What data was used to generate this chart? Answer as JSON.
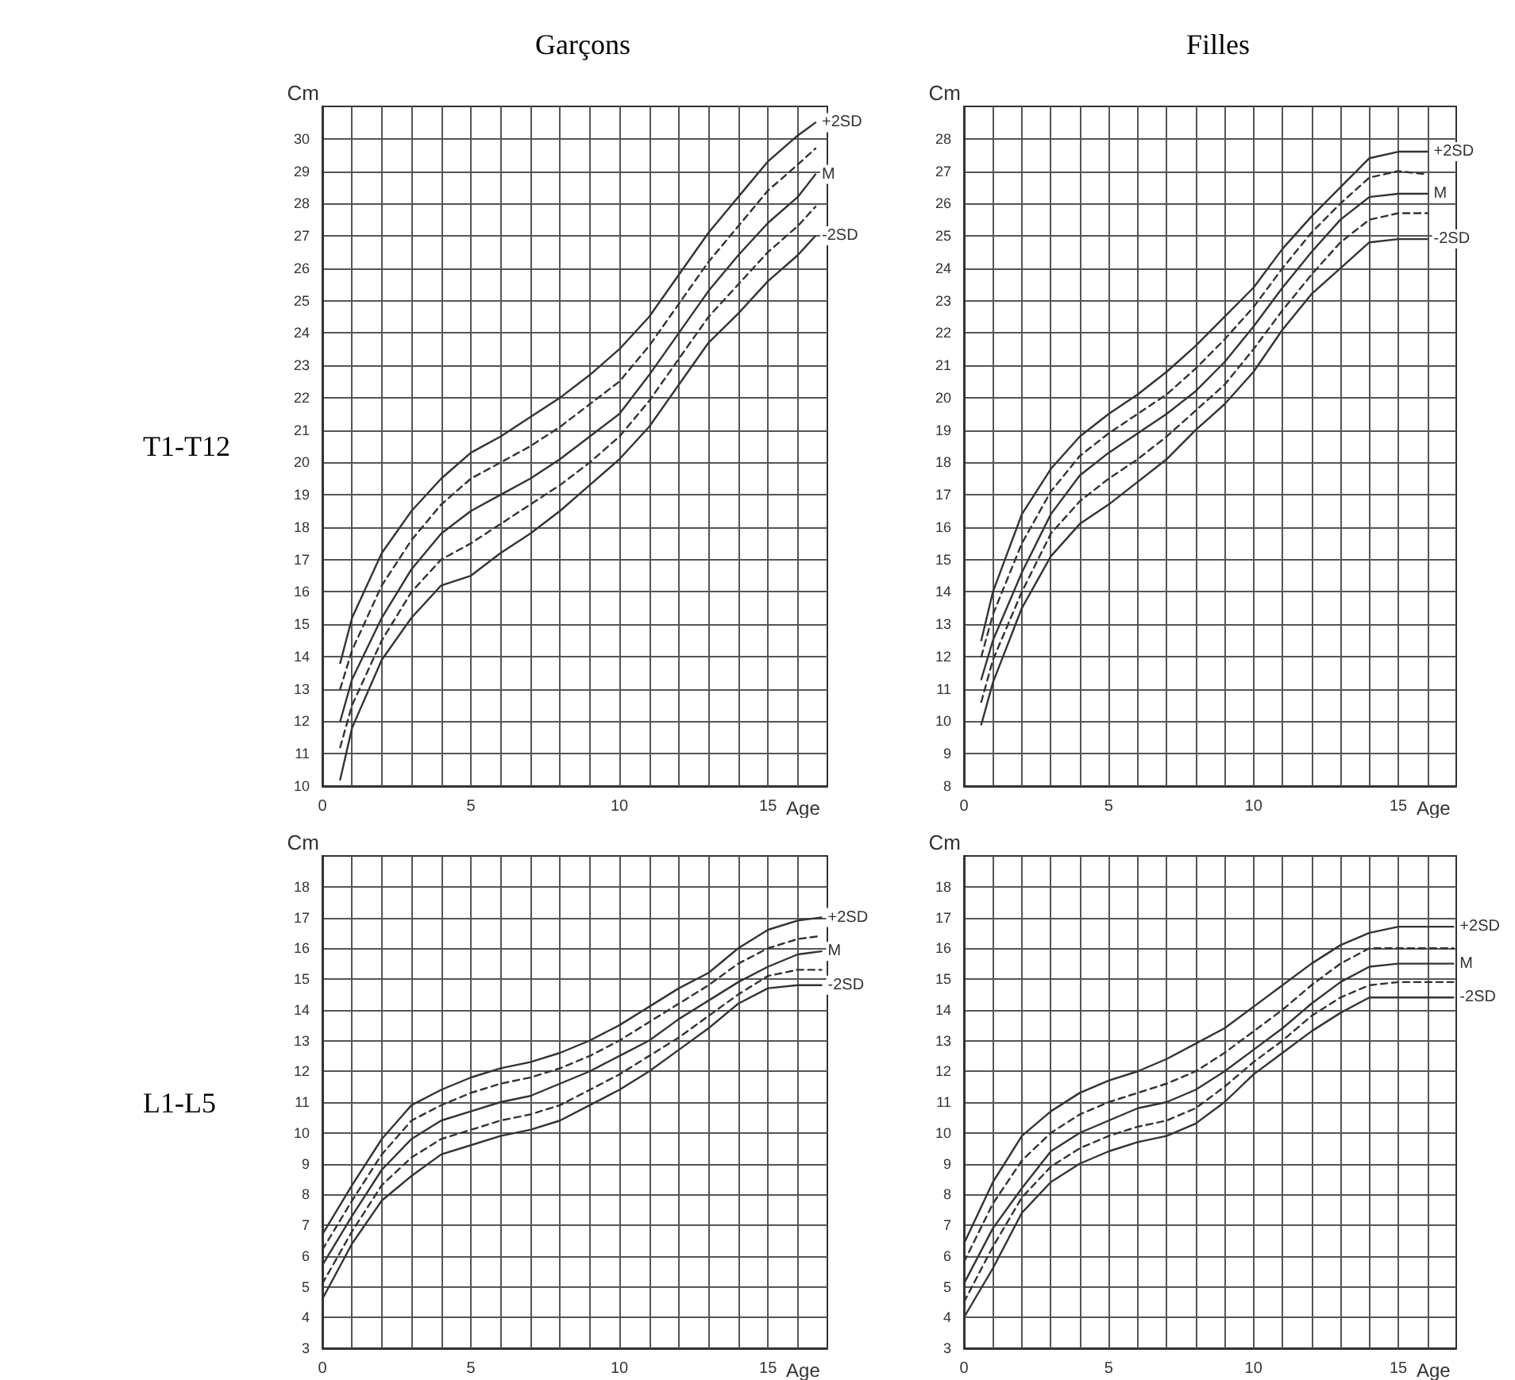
{
  "chart_data": [
    {
      "type": "line",
      "title": "Garçons",
      "annotations": [
        "T1-T12"
      ],
      "xlabel": "Age",
      "ylabel": "Cm",
      "grid": true,
      "marker": "none",
      "xlim": [
        0,
        17
      ],
      "ylim": [
        10,
        31
      ],
      "xticks": [
        0,
        {
          "value": 1,
          "label": null
        },
        {
          "value": 2,
          "label": null
        },
        {
          "value": 3,
          "label": null
        },
        {
          "value": 4,
          "label": null
        },
        5,
        {
          "value": 6,
          "label": null
        },
        {
          "value": 7,
          "label": null
        },
        {
          "value": 8,
          "label": null
        },
        {
          "value": 9,
          "label": null
        },
        10,
        {
          "value": 11,
          "label": null
        },
        {
          "value": 12,
          "label": null
        },
        {
          "value": 13,
          "label": null
        },
        {
          "value": 14,
          "label": null
        },
        15,
        {
          "value": 16,
          "label": null
        }
      ],
      "yticks": [
        10,
        11,
        12,
        13,
        14,
        15,
        16,
        17,
        18,
        19,
        20,
        21,
        22,
        23,
        24,
        25,
        26,
        27,
        28,
        29,
        30
      ],
      "x": [
        0.6,
        1,
        2,
        3,
        4,
        5,
        6,
        7,
        8,
        9,
        10,
        11,
        12,
        13,
        14,
        15,
        16,
        16.6
      ],
      "series": [
        {
          "name": "+2SD",
          "color": "#333333",
          "line_style": "solid",
          "values": [
            13.8,
            15.2,
            17.2,
            18.5,
            19.5,
            20.3,
            20.8,
            21.4,
            22.0,
            22.7,
            23.5,
            24.5,
            25.8,
            27.1,
            28.2,
            29.3,
            30.1,
            30.5
          ]
        },
        {
          "color": "#333333",
          "line_style": "dashed",
          "values": [
            13.0,
            14.2,
            16.2,
            17.6,
            18.7,
            19.5,
            20.0,
            20.5,
            21.1,
            21.8,
            22.5,
            23.6,
            24.9,
            26.2,
            27.3,
            28.4,
            29.2,
            29.7
          ]
        },
        {
          "name": "M",
          "color": "#333333",
          "line_style": "solid",
          "values": [
            12.0,
            13.3,
            15.2,
            16.7,
            17.8,
            18.5,
            19.0,
            19.5,
            20.1,
            20.8,
            21.5,
            22.7,
            24.0,
            25.3,
            26.4,
            27.4,
            28.2,
            28.9
          ]
        },
        {
          "color": "#333333",
          "line_style": "dashed",
          "values": [
            11.2,
            12.5,
            14.5,
            16.0,
            17.0,
            17.5,
            18.1,
            18.7,
            19.3,
            20.0,
            20.8,
            21.9,
            23.2,
            24.5,
            25.5,
            26.5,
            27.3,
            27.9
          ]
        },
        {
          "name": "-2SD",
          "color": "#333333",
          "line_style": "solid",
          "values": [
            10.2,
            11.8,
            13.9,
            15.2,
            16.2,
            16.5,
            17.2,
            17.8,
            18.5,
            19.3,
            20.1,
            21.1,
            22.4,
            23.7,
            24.6,
            25.6,
            26.4,
            27.0
          ]
        }
      ]
    },
    {
      "type": "line",
      "title": "Filles",
      "xlabel": "Age",
      "ylabel": "Cm",
      "grid": true,
      "marker": "none",
      "xlim": [
        0,
        17
      ],
      "ylim": [
        8,
        29
      ],
      "xticks": [
        0,
        {
          "value": 1,
          "label": null
        },
        {
          "value": 2,
          "label": null
        },
        {
          "value": 3,
          "label": null
        },
        {
          "value": 4,
          "label": null
        },
        5,
        {
          "value": 6,
          "label": null
        },
        {
          "value": 7,
          "label": null
        },
        {
          "value": 8,
          "label": null
        },
        {
          "value": 9,
          "label": null
        },
        10,
        {
          "value": 11,
          "label": null
        },
        {
          "value": 12,
          "label": null
        },
        {
          "value": 13,
          "label": null
        },
        {
          "value": 14,
          "label": null
        },
        15,
        {
          "value": 16,
          "label": null
        }
      ],
      "yticks": [
        8,
        9,
        10,
        11,
        12,
        13,
        14,
        15,
        16,
        17,
        18,
        19,
        20,
        21,
        22,
        23,
        24,
        25,
        26,
        27,
        28
      ],
      "x": [
        0.6,
        1,
        2,
        3,
        4,
        5,
        6,
        7,
        8,
        9,
        10,
        11,
        12,
        13,
        14,
        15,
        16
      ],
      "series": [
        {
          "name": "+2SD",
          "color": "#333333",
          "line_style": "solid",
          "values": [
            12.5,
            14.0,
            16.4,
            17.8,
            18.8,
            19.5,
            20.1,
            20.8,
            21.6,
            22.5,
            23.4,
            24.6,
            25.6,
            26.5,
            27.4,
            27.6,
            27.6
          ]
        },
        {
          "color": "#333333",
          "line_style": "dashed",
          "values": [
            12.0,
            13.3,
            15.5,
            17.1,
            18.2,
            18.9,
            19.5,
            20.1,
            20.9,
            21.8,
            22.8,
            24.0,
            25.1,
            26.0,
            26.8,
            27.0,
            26.9
          ]
        },
        {
          "name": "M",
          "color": "#333333",
          "line_style": "solid",
          "values": [
            11.3,
            12.5,
            14.6,
            16.4,
            17.6,
            18.3,
            18.9,
            19.5,
            20.2,
            21.1,
            22.2,
            23.4,
            24.5,
            25.5,
            26.2,
            26.3,
            26.3
          ]
        },
        {
          "color": "#333333",
          "line_style": "dashed",
          "values": [
            10.6,
            11.9,
            14.0,
            15.8,
            16.8,
            17.5,
            18.1,
            18.8,
            19.6,
            20.4,
            21.5,
            22.7,
            23.8,
            24.8,
            25.5,
            25.7,
            25.7
          ]
        },
        {
          "name": "-2SD",
          "color": "#333333",
          "line_style": "solid",
          "values": [
            9.9,
            11.2,
            13.5,
            15.1,
            16.1,
            16.7,
            17.4,
            18.1,
            19.0,
            19.8,
            20.8,
            22.1,
            23.2,
            24.0,
            24.8,
            24.9,
            24.9
          ]
        }
      ]
    },
    {
      "type": "line",
      "annotations": [
        "L1-L5"
      ],
      "xlabel": "Age",
      "ylabel": "Cm",
      "grid": true,
      "marker": "none",
      "xlim": [
        0,
        17
      ],
      "ylim": [
        3,
        19
      ],
      "xticks": [
        0,
        {
          "value": 1,
          "label": null
        },
        {
          "value": 2,
          "label": null
        },
        {
          "value": 3,
          "label": null
        },
        {
          "value": 4,
          "label": null
        },
        5,
        {
          "value": 6,
          "label": null
        },
        {
          "value": 7,
          "label": null
        },
        {
          "value": 8,
          "label": null
        },
        {
          "value": 9,
          "label": null
        },
        10,
        {
          "value": 11,
          "label": null
        },
        {
          "value": 12,
          "label": null
        },
        {
          "value": 13,
          "label": null
        },
        {
          "value": 14,
          "label": null
        },
        15,
        {
          "value": 16,
          "label": null
        }
      ],
      "yticks": [
        3,
        4,
        5,
        6,
        7,
        8,
        9,
        10,
        11,
        12,
        13,
        14,
        15,
        16,
        17,
        18
      ],
      "x": [
        0,
        1,
        2,
        3,
        4,
        5,
        6,
        7,
        8,
        9,
        10,
        11,
        12,
        13,
        14,
        15,
        16,
        16.8
      ],
      "series": [
        {
          "name": "+2SD",
          "color": "#333333",
          "line_style": "solid",
          "values": [
            6.7,
            8.3,
            9.8,
            10.9,
            11.4,
            11.8,
            12.1,
            12.3,
            12.6,
            13.0,
            13.5,
            14.1,
            14.7,
            15.2,
            16.0,
            16.6,
            16.9,
            17.0
          ]
        },
        {
          "color": "#333333",
          "line_style": "dashed",
          "values": [
            6.2,
            7.8,
            9.3,
            10.4,
            10.9,
            11.3,
            11.6,
            11.8,
            12.1,
            12.5,
            13.0,
            13.6,
            14.2,
            14.8,
            15.5,
            16.0,
            16.3,
            16.4
          ]
        },
        {
          "name": "M",
          "color": "#333333",
          "line_style": "solid",
          "values": [
            5.7,
            7.3,
            8.8,
            9.8,
            10.4,
            10.7,
            11.0,
            11.2,
            11.6,
            12.0,
            12.5,
            13.0,
            13.7,
            14.3,
            14.9,
            15.4,
            15.8,
            15.9
          ]
        },
        {
          "color": "#333333",
          "line_style": "dashed",
          "values": [
            5.1,
            6.8,
            8.3,
            9.2,
            9.8,
            10.1,
            10.4,
            10.6,
            10.9,
            11.4,
            11.9,
            12.5,
            13.1,
            13.8,
            14.5,
            15.1,
            15.3,
            15.3
          ]
        },
        {
          "name": "-2SD",
          "color": "#333333",
          "line_style": "solid",
          "values": [
            4.6,
            6.4,
            7.8,
            8.6,
            9.3,
            9.6,
            9.9,
            10.1,
            10.4,
            10.9,
            11.4,
            12.0,
            12.7,
            13.4,
            14.2,
            14.7,
            14.8,
            14.8
          ]
        }
      ]
    },
    {
      "type": "line",
      "xlabel": "Age",
      "ylabel": "Cm",
      "grid": true,
      "marker": "none",
      "xlim": [
        0,
        17
      ],
      "ylim": [
        3,
        19
      ],
      "xticks": [
        0,
        {
          "value": 1,
          "label": null
        },
        {
          "value": 2,
          "label": null
        },
        {
          "value": 3,
          "label": null
        },
        {
          "value": 4,
          "label": null
        },
        5,
        {
          "value": 6,
          "label": null
        },
        {
          "value": 7,
          "label": null
        },
        {
          "value": 8,
          "label": null
        },
        {
          "value": 9,
          "label": null
        },
        10,
        {
          "value": 11,
          "label": null
        },
        {
          "value": 12,
          "label": null
        },
        {
          "value": 13,
          "label": null
        },
        {
          "value": 14,
          "label": null
        },
        15,
        {
          "value": 16,
          "label": null
        }
      ],
      "yticks": [
        3,
        4,
        5,
        6,
        7,
        8,
        9,
        10,
        11,
        12,
        13,
        14,
        15,
        16,
        17,
        18
      ],
      "x": [
        0,
        1,
        2,
        3,
        4,
        5,
        6,
        7,
        8,
        9,
        10,
        11,
        12,
        13,
        14,
        15,
        16,
        16.9
      ],
      "series": [
        {
          "name": "+2SD",
          "color": "#333333",
          "line_style": "solid",
          "values": [
            6.4,
            8.4,
            9.9,
            10.7,
            11.3,
            11.7,
            12.0,
            12.4,
            12.9,
            13.4,
            14.1,
            14.8,
            15.5,
            16.1,
            16.5,
            16.7,
            16.7,
            16.7
          ]
        },
        {
          "color": "#333333",
          "line_style": "dashed",
          "values": [
            5.8,
            7.7,
            9.1,
            10.0,
            10.6,
            11.0,
            11.3,
            11.6,
            12.0,
            12.6,
            13.3,
            14.0,
            14.8,
            15.5,
            16.0,
            16.0,
            16.0,
            16.0
          ]
        },
        {
          "name": "M",
          "color": "#333333",
          "line_style": "solid",
          "values": [
            5.1,
            6.9,
            8.2,
            9.4,
            10.0,
            10.4,
            10.8,
            11.0,
            11.4,
            12.0,
            12.7,
            13.4,
            14.2,
            14.9,
            15.4,
            15.5,
            15.5,
            15.5
          ]
        },
        {
          "color": "#333333",
          "line_style": "dashed",
          "values": [
            4.5,
            6.3,
            7.9,
            8.9,
            9.5,
            9.9,
            10.2,
            10.4,
            10.8,
            11.5,
            12.3,
            13.0,
            13.8,
            14.4,
            14.8,
            14.9,
            14.9,
            14.9
          ]
        },
        {
          "name": "-2SD",
          "color": "#333333",
          "line_style": "solid",
          "values": [
            4.0,
            5.6,
            7.4,
            8.4,
            9.0,
            9.4,
            9.7,
            9.9,
            10.3,
            11.0,
            11.9,
            12.6,
            13.3,
            13.9,
            14.4,
            14.4,
            14.4,
            14.4
          ]
        }
      ]
    }
  ]
}
